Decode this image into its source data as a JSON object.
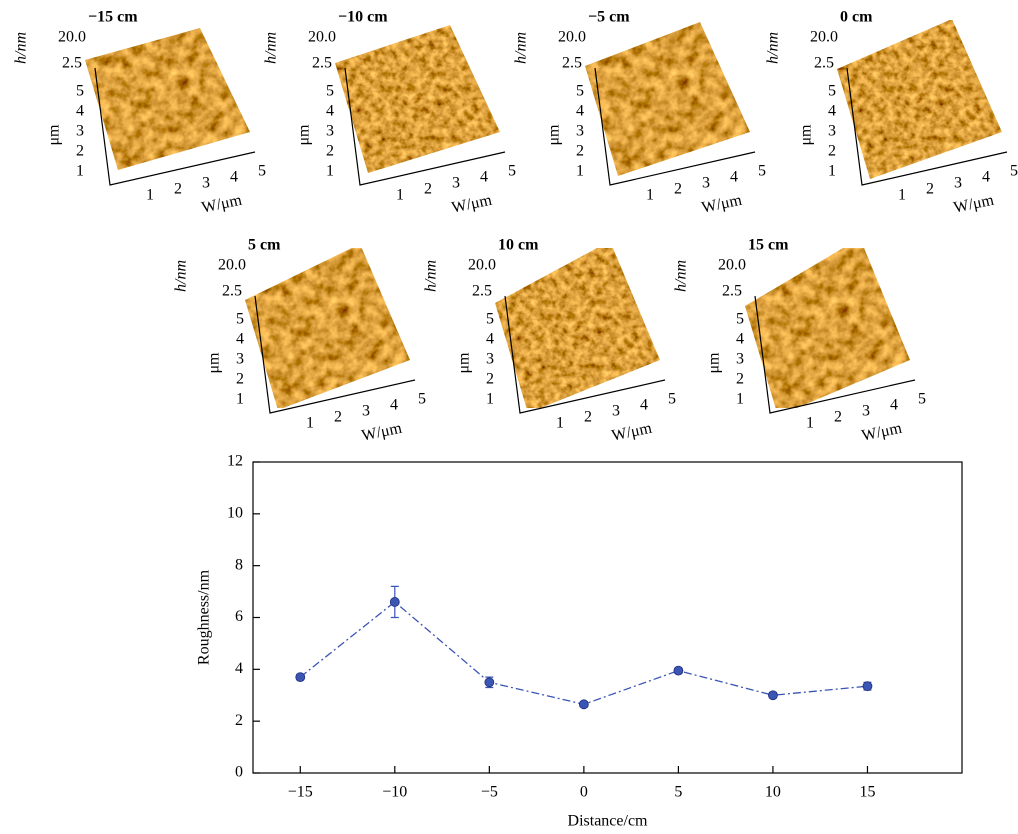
{
  "afm_axes": {
    "h_label": "h/nm",
    "h_ticks": [
      "20.0",
      "2.5"
    ],
    "y_label": "μm",
    "y_ticks": [
      "1",
      "2",
      "3",
      "4",
      "5"
    ],
    "x_label": "W/μm",
    "x_ticks": [
      "1",
      "2",
      "3",
      "4",
      "5"
    ]
  },
  "afm_panels": [
    "−15 cm",
    "−10 cm",
    "−5 cm",
    "0 cm",
    "5 cm",
    "10 cm",
    "15 cm"
  ],
  "chart_data": {
    "type": "line",
    "x_label": "Distance/cm",
    "y_label": "Roughness/nm",
    "x": [
      -15,
      -10,
      -5,
      0,
      5,
      10,
      15
    ],
    "values": [
      3.7,
      6.6,
      3.5,
      2.65,
      3.95,
      3.0,
      3.35
    ],
    "errors": [
      0.1,
      0.6,
      0.2,
      0.1,
      0.1,
      0.1,
      0.15
    ],
    "color": "#3b55b5",
    "xlim": [
      -17.5,
      20
    ],
    "xticks": [
      {
        "value": -15,
        "label": "−15"
      },
      {
        "value": -10,
        "label": "−10"
      },
      {
        "value": -5,
        "label": "−5"
      },
      0,
      5,
      10,
      15
    ],
    "ylim": [
      0,
      12
    ],
    "yticks": [
      0,
      2,
      4,
      6,
      8,
      10,
      12
    ]
  }
}
